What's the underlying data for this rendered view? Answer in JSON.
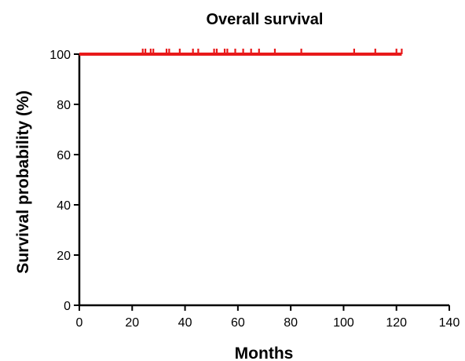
{
  "chart_data": {
    "type": "line",
    "title": "Overall survival",
    "xlabel": "Months",
    "ylabel": "Survival probability (%)",
    "xlim": [
      0,
      140
    ],
    "ylim": [
      0,
      100
    ],
    "x_ticks": [
      0,
      20,
      40,
      60,
      80,
      100,
      120,
      140
    ],
    "y_ticks": [
      0,
      20,
      40,
      60,
      80,
      100
    ],
    "grid": false,
    "series": [
      {
        "x": [
          0,
          122
        ],
        "y": [
          100,
          100
        ],
        "color": "#e8191a",
        "censor_times": [
          24,
          25,
          27,
          28,
          33,
          34,
          38,
          43,
          45,
          51,
          52,
          55,
          56,
          59,
          62,
          65,
          68,
          74,
          84,
          104,
          112,
          120,
          122
        ]
      }
    ]
  }
}
